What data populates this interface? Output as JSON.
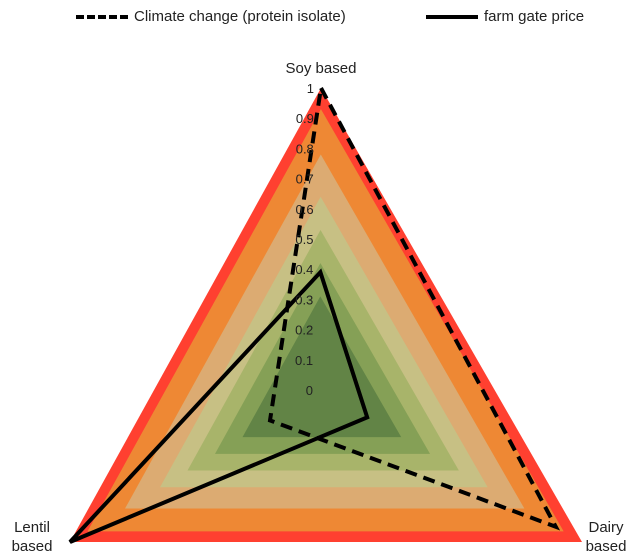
{
  "legend": {
    "items": [
      {
        "label": "Climate change (protein isolate)",
        "style": "dashed"
      },
      {
        "label": "farm gate price",
        "style": "solid"
      }
    ]
  },
  "chart_data": {
    "type": "radar",
    "axes": [
      {
        "key": "soy",
        "lines": [
          "Soy based"
        ]
      },
      {
        "key": "dairy",
        "lines": [
          "Dairy",
          "based"
        ]
      },
      {
        "key": "lentil",
        "lines": [
          "Lentil",
          "based"
        ]
      }
    ],
    "rlim": [
      0,
      1
    ],
    "ticks": [
      "0",
      "0.1",
      "0.2",
      "0.3",
      "0.4",
      "0.5",
      "0.6",
      "0.7",
      "0.8",
      "0.9",
      "1"
    ],
    "series": [
      {
        "name": "Climate change (protein isolate)",
        "line": "dashed",
        "values": [
          1.0,
          0.9,
          0.2
        ]
      },
      {
        "name": "farm gate price",
        "line": "solid",
        "values": [
          0.39,
          0.18,
          1.0
        ]
      }
    ],
    "background_band_colors": [
      "#ff4030",
      "#ee8834",
      "#dcab72",
      "#c7c084",
      "#a8b46a",
      "#85a056",
      "#628446"
    ]
  }
}
